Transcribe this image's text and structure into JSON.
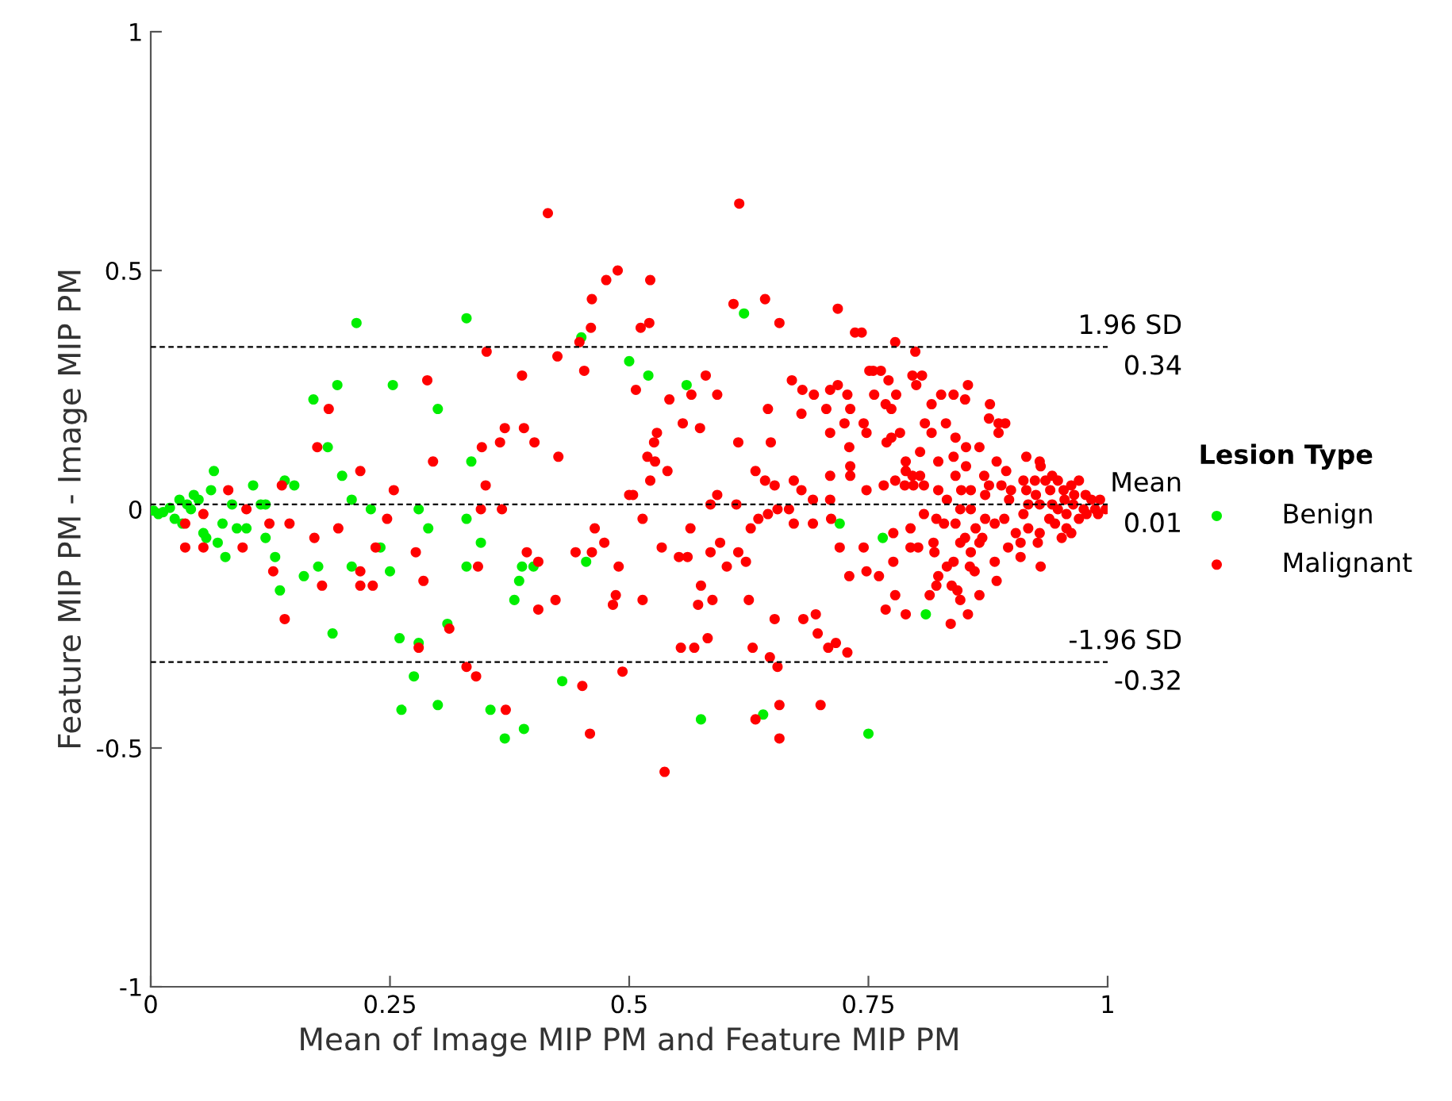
{
  "chart_data": {
    "type": "scatter",
    "xlabel": "Mean of Image MIP PM and Feature MIP PM",
    "ylabel": "Feature MIP PM - Image MIP PM",
    "legend_title": "Lesion Type",
    "legend": "right",
    "grid": false,
    "marker": "circle",
    "xlim": [
      0,
      1
    ],
    "ylim": [
      -1,
      1
    ],
    "xticks": [
      0,
      0.25,
      0.5,
      0.75,
      1
    ],
    "yticks": [
      -1,
      -0.5,
      0,
      0.5,
      1
    ],
    "ref_lines": [
      {
        "axis": "y",
        "value": 0.34,
        "label": "1.96 SD\n0.34",
        "color": "#000000",
        "line_style": "dashed"
      },
      {
        "axis": "y",
        "value": 0.01,
        "label": "Mean\n0.01",
        "color": "#000000",
        "line_style": "dashed"
      },
      {
        "axis": "y",
        "value": -0.32,
        "label": "-1.96 SD\n-0.32",
        "color": "#000000",
        "line_style": "dashed"
      }
    ],
    "series": [
      {
        "name": "Benign",
        "color": "#00ee00",
        "x": [
          0.003,
          0.008,
          0.013,
          0.02,
          0.025,
          0.03,
          0.033,
          0.038,
          0.042,
          0.045,
          0.05,
          0.055,
          0.058,
          0.063,
          0.066,
          0.07,
          0.075,
          0.078,
          0.085,
          0.09,
          0.1,
          0.107,
          0.115,
          0.12,
          0.13,
          0.135,
          0.14,
          0.15,
          0.16,
          0.17,
          0.175,
          0.185,
          0.19,
          0.195,
          0.2,
          0.21,
          0.215,
          0.23,
          0.24,
          0.25,
          0.253,
          0.26,
          0.262,
          0.275,
          0.28,
          0.29,
          0.3,
          0.31,
          0.3,
          0.33,
          0.335,
          0.345,
          0.355,
          0.37,
          0.38,
          0.388,
          0.39,
          0.385,
          0.4,
          0.43,
          0.45,
          0.455,
          0.5,
          0.52,
          0.56,
          0.575,
          0.62,
          0.64,
          0.72,
          0.75,
          0.765,
          0.81,
          0.12,
          0.21,
          0.33,
          0.28,
          0.33
        ],
        "values": [
          -0.003,
          -0.01,
          -0.006,
          0.003,
          -0.02,
          0.02,
          -0.03,
          0.01,
          0.0,
          0.03,
          0.02,
          -0.05,
          -0.06,
          0.04,
          0.08,
          -0.07,
          -0.03,
          -0.1,
          0.01,
          -0.04,
          -0.04,
          0.05,
          0.01,
          -0.06,
          -0.1,
          -0.17,
          0.06,
          0.05,
          -0.14,
          0.23,
          -0.12,
          0.13,
          -0.26,
          0.26,
          0.07,
          -0.12,
          0.39,
          0.0,
          -0.08,
          -0.13,
          0.26,
          -0.27,
          -0.42,
          -0.35,
          0.0,
          -0.04,
          0.21,
          -0.24,
          -0.41,
          0.4,
          0.1,
          -0.07,
          -0.42,
          -0.48,
          -0.19,
          -0.12,
          -0.46,
          -0.15,
          -0.12,
          -0.36,
          0.36,
          -0.11,
          0.31,
          0.28,
          0.26,
          -0.44,
          0.41,
          -0.43,
          -0.03,
          -0.47,
          -0.06,
          -0.22,
          0.01,
          0.02,
          -0.02,
          -0.28,
          -0.12
        ]
      },
      {
        "name": "Malignant",
        "color": "#ff0000",
        "x": [
          0.036,
          0.036,
          0.081,
          0.055,
          0.055,
          0.1,
          0.096,
          0.124,
          0.137,
          0.145,
          0.128,
          0.14,
          0.174,
          0.186,
          0.171,
          0.179,
          0.196,
          0.219,
          0.219,
          0.219,
          0.232,
          0.235,
          0.247,
          0.254,
          0.277,
          0.285,
          0.28,
          0.312,
          0.289,
          0.295,
          0.342,
          0.33,
          0.34,
          0.346,
          0.35,
          0.345,
          0.351,
          0.415,
          0.388,
          0.425,
          0.453,
          0.448,
          0.46,
          0.461,
          0.476,
          0.488,
          0.522,
          0.512,
          0.521,
          0.507,
          0.542,
          0.565,
          0.58,
          0.592,
          0.556,
          0.574,
          0.529,
          0.526,
          0.519,
          0.527,
          0.54,
          0.522,
          0.5,
          0.504,
          0.514,
          0.365,
          0.37,
          0.39,
          0.401,
          0.426,
          0.367,
          0.393,
          0.405,
          0.444,
          0.461,
          0.464,
          0.474,
          0.489,
          0.423,
          0.405,
          0.486,
          0.483,
          0.514,
          0.534,
          0.552,
          0.561,
          0.564,
          0.585,
          0.595,
          0.602,
          0.614,
          0.622,
          0.627,
          0.625,
          0.575,
          0.572,
          0.587,
          0.554,
          0.568,
          0.582,
          0.493,
          0.451,
          0.371,
          0.459,
          0.537,
          0.632,
          0.657,
          0.657,
          0.7,
          0.629,
          0.647,
          0.655,
          0.652,
          0.682,
          0.695,
          0.697,
          0.708,
          0.716,
          0.728,
          0.585,
          0.592,
          0.612,
          0.635,
          0.645,
          0.655,
          0.667,
          0.672,
          0.692,
          0.711,
          0.72,
          0.73,
          0.745,
          0.748,
          0.614,
          0.632,
          0.642,
          0.652,
          0.648,
          0.645,
          0.672,
          0.68,
          0.692,
          0.71,
          0.71,
          0.71,
          0.725,
          0.73,
          0.731,
          0.731,
          0.748,
          0.748,
          0.67,
          0.681,
          0.693,
          0.68,
          0.706,
          0.71,
          0.718,
          0.728,
          0.731,
          0.751,
          0.609,
          0.642,
          0.657,
          0.718,
          0.736,
          0.615,
          0.778,
          0.799,
          0.755,
          0.763,
          0.796,
          0.806,
          0.8,
          0.771,
          0.756,
          0.779,
          0.768,
          0.774,
          0.826,
          0.839,
          0.854,
          0.816,
          0.851,
          0.877,
          0.745,
          0.783,
          0.774,
          0.769,
          0.809,
          0.816,
          0.831,
          0.841,
          0.876,
          0.886,
          0.893,
          0.886,
          0.852,
          0.839,
          0.866,
          0.804,
          0.789,
          0.823,
          0.884,
          0.789,
          0.796,
          0.804,
          0.778,
          0.788,
          0.797,
          0.808,
          0.841,
          0.852,
          0.847,
          0.857,
          0.832,
          0.871,
          0.876,
          0.872,
          0.894,
          0.889,
          0.899,
          0.897,
          0.915,
          0.929,
          0.93,
          0.912,
          0.924,
          0.915,
          0.935,
          0.942,
          0.948,
          0.925,
          0.94,
          0.954,
          0.962,
          0.97,
          0.955,
          0.965,
          0.977,
          0.983,
          0.992,
          0.998,
          0.987,
          0.975,
          0.964,
          0.942,
          0.948,
          0.957,
          0.97,
          0.978,
          0.99,
          0.929,
          0.917,
          0.912,
          0.917,
          0.939,
          0.945,
          0.957,
          0.962,
          0.952,
          0.929,
          0.927,
          0.909,
          0.904,
          0.93,
          0.909,
          0.896,
          0.882,
          0.884,
          0.892,
          0.882,
          0.872,
          0.857,
          0.846,
          0.821,
          0.829,
          0.841,
          0.862,
          0.869,
          0.866,
          0.851,
          0.846,
          0.857,
          0.856,
          0.861,
          0.839,
          0.832,
          0.819,
          0.818,
          0.808,
          0.794,
          0.794,
          0.802,
          0.776,
          0.776,
          0.761,
          0.823,
          0.821,
          0.814,
          0.837,
          0.843,
          0.846,
          0.854,
          0.836,
          0.866,
          0.778,
          0.768,
          0.789,
          0.823,
          0.766,
          0.743
        ],
        "values": [
          -0.03,
          -0.08,
          0.04,
          -0.01,
          -0.08,
          0.0,
          -0.08,
          -0.03,
          0.05,
          -0.03,
          -0.13,
          -0.23,
          0.13,
          0.21,
          -0.06,
          -0.16,
          -0.04,
          0.08,
          -0.13,
          -0.16,
          -0.16,
          -0.08,
          -0.02,
          0.04,
          -0.09,
          -0.15,
          -0.29,
          -0.25,
          0.27,
          0.1,
          -0.12,
          -0.33,
          -0.35,
          0.13,
          0.05,
          0.0,
          0.33,
          0.62,
          0.28,
          0.32,
          0.29,
          0.35,
          0.38,
          0.44,
          0.48,
          0.5,
          0.48,
          0.38,
          0.39,
          0.25,
          0.23,
          0.24,
          0.28,
          0.24,
          0.18,
          0.17,
          0.16,
          0.14,
          0.11,
          0.1,
          0.08,
          0.06,
          0.03,
          0.03,
          -0.02,
          0.14,
          0.17,
          0.17,
          0.14,
          0.11,
          0.0,
          -0.09,
          -0.11,
          -0.09,
          -0.09,
          -0.04,
          -0.07,
          -0.12,
          -0.19,
          -0.21,
          -0.18,
          -0.2,
          -0.19,
          -0.08,
          -0.1,
          -0.1,
          -0.04,
          -0.09,
          -0.07,
          -0.12,
          -0.09,
          -0.11,
          -0.04,
          -0.19,
          -0.16,
          -0.2,
          -0.19,
          -0.29,
          -0.29,
          -0.27,
          -0.34,
          -0.37,
          -0.42,
          -0.47,
          -0.55,
          -0.44,
          -0.41,
          -0.48,
          -0.41,
          -0.29,
          -0.31,
          -0.33,
          -0.23,
          -0.23,
          -0.22,
          -0.26,
          -0.29,
          -0.28,
          -0.3,
          0.01,
          0.03,
          0.01,
          -0.02,
          -0.01,
          0.0,
          0.0,
          -0.03,
          -0.03,
          -0.02,
          -0.08,
          -0.14,
          -0.08,
          -0.13,
          0.14,
          0.08,
          0.06,
          0.05,
          0.14,
          0.21,
          0.06,
          0.04,
          0.02,
          0.02,
          0.07,
          0.16,
          0.18,
          0.13,
          0.09,
          0.07,
          0.16,
          0.04,
          0.27,
          0.25,
          0.24,
          0.2,
          0.21,
          0.25,
          0.26,
          0.24,
          0.21,
          0.29,
          0.43,
          0.44,
          0.39,
          0.42,
          0.37,
          0.64,
          0.35,
          0.33,
          0.29,
          0.29,
          0.28,
          0.28,
          0.26,
          0.27,
          0.24,
          0.24,
          0.22,
          0.21,
          0.24,
          0.24,
          0.26,
          0.22,
          0.23,
          0.22,
          0.18,
          0.16,
          0.15,
          0.14,
          0.18,
          0.16,
          0.18,
          0.15,
          0.19,
          0.18,
          0.18,
          0.16,
          0.13,
          0.11,
          0.13,
          0.12,
          0.1,
          0.1,
          0.1,
          0.08,
          0.07,
          0.07,
          0.06,
          0.05,
          0.05,
          0.05,
          0.07,
          0.09,
          0.04,
          0.04,
          0.02,
          0.07,
          0.05,
          0.03,
          0.08,
          0.05,
          0.04,
          0.02,
          0.11,
          0.1,
          0.09,
          0.06,
          0.06,
          0.04,
          0.06,
          0.07,
          0.06,
          0.03,
          0.04,
          0.04,
          0.05,
          0.06,
          0.02,
          0.03,
          0.03,
          0.02,
          0.02,
          0.0,
          0.0,
          0.0,
          0.01,
          0.01,
          0.0,
          -0.01,
          -0.02,
          -0.01,
          -0.01,
          0.01,
          0.01,
          -0.01,
          -0.04,
          -0.02,
          -0.03,
          -0.04,
          -0.05,
          -0.06,
          -0.05,
          -0.07,
          -0.07,
          -0.05,
          -0.12,
          -0.1,
          -0.08,
          -0.11,
          -0.15,
          -0.02,
          -0.03,
          -0.02,
          0.0,
          0.0,
          -0.02,
          -0.03,
          -0.03,
          -0.04,
          -0.06,
          -0.07,
          -0.06,
          -0.07,
          -0.09,
          -0.12,
          -0.13,
          -0.11,
          -0.12,
          -0.09,
          -0.07,
          -0.01,
          -0.04,
          -0.08,
          -0.08,
          -0.05,
          -0.11,
          -0.14,
          -0.14,
          -0.16,
          -0.18,
          -0.16,
          -0.17,
          -0.19,
          -0.22,
          -0.24,
          -0.18,
          -0.18,
          -0.21,
          -0.22,
          0.04,
          0.05,
          0.37
        ]
      }
    ]
  }
}
